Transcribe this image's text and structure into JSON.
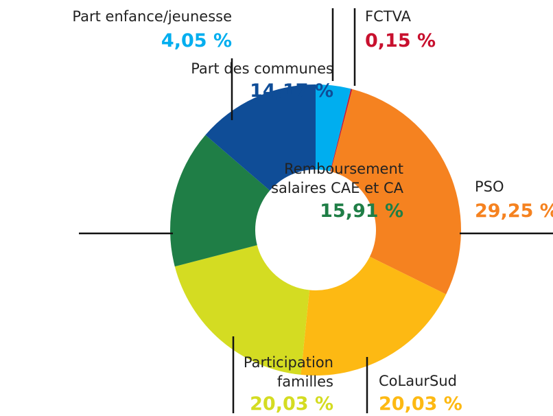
{
  "chart_data": {
    "type": "donut",
    "categories": [
      "Part enfance/jeunesse",
      "FCTVA",
      "PSO",
      "CoLaurSud",
      "Participation familles",
      "Remboursement salaires CAE et CA",
      "Part des communes"
    ],
    "values": [
      4.05,
      0.15,
      29.25,
      20.03,
      20.03,
      15.91,
      14.17
    ],
    "value_labels": [
      "4,05 %",
      "0,15 %",
      "29,25 %",
      "20,03 %",
      "20,03 %",
      "15,91 %",
      "14,17 %"
    ],
    "colors": [
      "#00aeef",
      "#c8102e",
      "#f58220",
      "#fdb913",
      "#d4dc22",
      "#1f7e46",
      "#0f4d97"
    ]
  }
}
